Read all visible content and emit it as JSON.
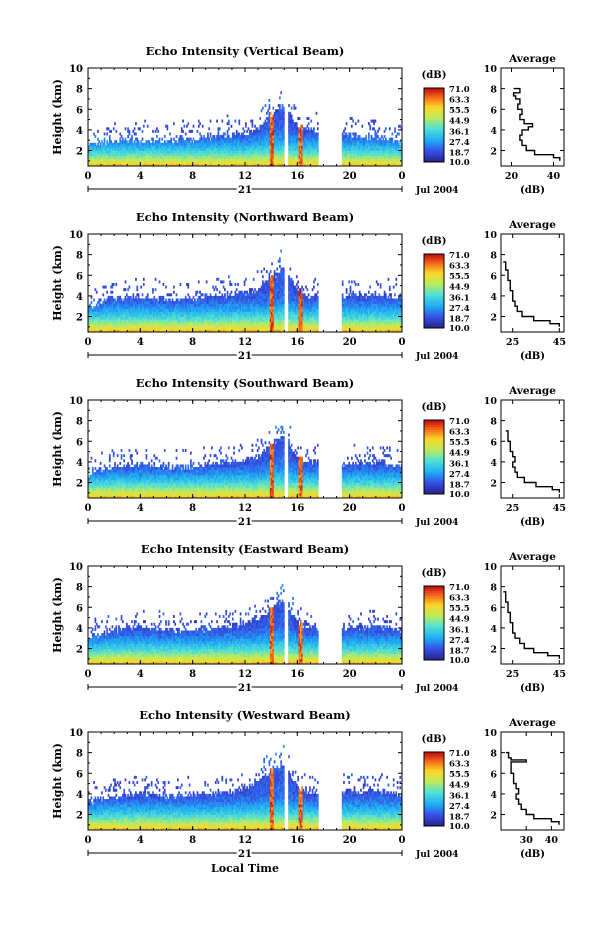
{
  "chart_data": [
    {
      "type": "heatmap",
      "title": "Echo Intensity (Vertical Beam)",
      "xlabel": "",
      "ylabel": "Height (km)",
      "xlim": [
        0,
        24
      ],
      "ylim": [
        0.5,
        10
      ],
      "xticks": [
        "0",
        "4",
        "8",
        "12",
        "16",
        "20",
        "0"
      ],
      "yticks": [
        "2",
        "4",
        "6",
        "8",
        "10"
      ],
      "date_label": "21",
      "month_label": "Jul 2004",
      "colorbar": {
        "unit": "(dB)",
        "levels": [
          "71.0",
          "63.3",
          "55.5",
          "44.9",
          "36.1",
          "27.4",
          "18.7",
          "10.0"
        ]
      },
      "echo_top_km": [
        [
          0,
          2.6
        ],
        [
          2,
          3.0
        ],
        [
          4,
          3.0
        ],
        [
          6,
          3.0
        ],
        [
          8,
          3.1
        ],
        [
          10,
          3.5
        ],
        [
          12,
          3.6
        ],
        [
          13,
          4.2
        ],
        [
          14,
          5.5
        ],
        [
          15,
          6.5
        ],
        [
          16,
          4.3
        ],
        [
          17,
          4.0
        ],
        [
          17.6,
          4.0
        ],
        [
          19.5,
          3.6
        ],
        [
          22,
          3.3
        ],
        [
          24,
          2.8
        ]
      ],
      "data_gap_local_time": [
        17.6,
        19.4
      ],
      "average": {
        "title": "Average",
        "xlabel": "(dB)",
        "xticks": [
          "20",
          "40"
        ],
        "xlim": [
          15,
          45
        ],
        "ylim": [
          0.5,
          10
        ],
        "yticks": [
          "2",
          "4",
          "6",
          "8",
          "10"
        ],
        "height_km": [
          1.0,
          1.3,
          1.6,
          2.0,
          2.5,
          3.0,
          3.5,
          4.0,
          4.3,
          4.6,
          5.0,
          5.5,
          6.0,
          6.5,
          7.0,
          7.3,
          7.6,
          8.0
        ],
        "db": [
          43,
          40,
          31,
          27,
          25,
          24,
          25,
          28,
          30,
          26,
          24,
          25,
          23,
          24,
          22,
          21,
          24,
          21
        ]
      }
    },
    {
      "type": "heatmap",
      "title": "Echo Intensity (Northward Beam)",
      "xlabel": "",
      "ylabel": "Height (km)",
      "xlim": [
        0,
        24
      ],
      "ylim": [
        0.5,
        10
      ],
      "xticks": [
        "0",
        "4",
        "8",
        "12",
        "16",
        "20",
        "0"
      ],
      "yticks": [
        "2",
        "4",
        "6",
        "8",
        "10"
      ],
      "date_label": "21",
      "month_label": "Jul 2004",
      "colorbar": {
        "unit": "(dB)",
        "levels": [
          "71.0",
          "63.3",
          "55.5",
          "44.9",
          "36.1",
          "27.4",
          "18.7",
          "10.0"
        ]
      },
      "echo_top_km": [
        [
          0,
          3.0
        ],
        [
          2,
          3.8
        ],
        [
          4,
          4.0
        ],
        [
          6,
          3.6
        ],
        [
          8,
          3.8
        ],
        [
          10,
          4.0
        ],
        [
          12,
          4.3
        ],
        [
          13,
          4.6
        ],
        [
          14,
          5.8
        ],
        [
          15,
          6.8
        ],
        [
          16,
          4.6
        ],
        [
          17,
          4.0
        ],
        [
          17.6,
          4.0
        ],
        [
          19.5,
          4.0
        ],
        [
          22,
          4.2
        ],
        [
          24,
          3.9
        ]
      ],
      "data_gap_local_time": [
        17.6,
        19.4
      ],
      "average": {
        "title": "Average",
        "xlabel": "(dB)",
        "xticks": [
          "25",
          "45"
        ],
        "xlim": [
          20,
          47
        ],
        "ylim": [
          0.5,
          10
        ],
        "yticks": [
          "2",
          "4",
          "6",
          "8",
          "10"
        ],
        "height_km": [
          1.0,
          1.3,
          1.6,
          2.0,
          2.5,
          3.0,
          3.5,
          4.0,
          4.5,
          5.0,
          5.5,
          6.0,
          6.5,
          7.0,
          7.3
        ],
        "db": [
          45,
          41,
          34,
          29,
          27,
          26,
          25,
          25,
          24,
          24,
          23,
          23,
          22,
          22,
          21
        ]
      }
    },
    {
      "type": "heatmap",
      "title": "Echo Intensity (Southward Beam)",
      "xlabel": "",
      "ylabel": "Height (km)",
      "xlim": [
        0,
        24
      ],
      "ylim": [
        0.5,
        10
      ],
      "xticks": [
        "0",
        "4",
        "8",
        "12",
        "16",
        "20",
        "0"
      ],
      "yticks": [
        "2",
        "4",
        "6",
        "8",
        "10"
      ],
      "date_label": "21",
      "month_label": "Jul 2004",
      "colorbar": {
        "unit": "(dB)",
        "levels": [
          "71.0",
          "63.3",
          "55.5",
          "44.9",
          "36.1",
          "27.4",
          "18.7",
          "10.0"
        ]
      },
      "echo_top_km": [
        [
          0,
          2.8
        ],
        [
          2,
          3.6
        ],
        [
          4,
          3.8
        ],
        [
          6,
          3.5
        ],
        [
          8,
          3.6
        ],
        [
          10,
          3.9
        ],
        [
          12,
          4.2
        ],
        [
          13,
          4.5
        ],
        [
          14,
          5.6
        ],
        [
          15,
          6.8
        ],
        [
          16,
          4.5
        ],
        [
          17,
          4.0
        ],
        [
          17.6,
          4.0
        ],
        [
          19.5,
          3.8
        ],
        [
          22,
          4.0
        ],
        [
          24,
          3.6
        ]
      ],
      "data_gap_local_time": [
        17.6,
        19.4
      ],
      "average": {
        "title": "Average",
        "xlabel": "(dB)",
        "xticks": [
          "25",
          "45"
        ],
        "xlim": [
          20,
          47
        ],
        "ylim": [
          0.5,
          10
        ],
        "yticks": [
          "2",
          "4",
          "6",
          "8",
          "10"
        ],
        "height_km": [
          1.0,
          1.3,
          1.6,
          2.0,
          2.5,
          3.0,
          3.5,
          4.0,
          4.5,
          5.0,
          5.5,
          6.0,
          6.5,
          7.0
        ],
        "db": [
          45,
          42,
          35,
          30,
          27,
          26,
          25,
          26,
          25,
          24,
          24,
          23,
          23,
          22
        ]
      }
    },
    {
      "type": "heatmap",
      "title": "Echo Intensity (Eastward Beam)",
      "xlabel": "",
      "ylabel": "Height (km)",
      "xlim": [
        0,
        24
      ],
      "ylim": [
        0.5,
        10
      ],
      "xticks": [
        "0",
        "4",
        "8",
        "12",
        "16",
        "20",
        "0"
      ],
      "yticks": [
        "2",
        "4",
        "6",
        "8",
        "10"
      ],
      "date_label": "21",
      "month_label": "Jul 2004",
      "colorbar": {
        "unit": "(dB)",
        "levels": [
          "71.0",
          "63.3",
          "55.5",
          "44.9",
          "36.1",
          "27.4",
          "18.7",
          "10.0"
        ]
      },
      "echo_top_km": [
        [
          0,
          3.0
        ],
        [
          2,
          3.8
        ],
        [
          4,
          4.2
        ],
        [
          6,
          3.8
        ],
        [
          8,
          3.8
        ],
        [
          10,
          4.0
        ],
        [
          12,
          4.5
        ],
        [
          13,
          5.0
        ],
        [
          14,
          6.0
        ],
        [
          15,
          6.8
        ],
        [
          16,
          4.5
        ],
        [
          17,
          4.1
        ],
        [
          17.6,
          4.0
        ],
        [
          19.5,
          4.0
        ],
        [
          22,
          4.2
        ],
        [
          24,
          3.8
        ]
      ],
      "data_gap_local_time": [
        17.6,
        19.4
      ],
      "average": {
        "title": "Average",
        "xlabel": "(dB)",
        "xticks": [
          "25",
          "45"
        ],
        "xlim": [
          20,
          47
        ],
        "ylim": [
          0.5,
          10
        ],
        "yticks": [
          "2",
          "4",
          "6",
          "8",
          "10"
        ],
        "height_km": [
          1.0,
          1.3,
          1.6,
          2.0,
          2.5,
          3.0,
          3.5,
          4.0,
          4.5,
          5.0,
          5.5,
          6.0,
          6.5,
          7.0,
          7.5
        ],
        "db": [
          45,
          40,
          34,
          30,
          28,
          26,
          25,
          25,
          24,
          24,
          23,
          23,
          22,
          22,
          21
        ]
      }
    },
    {
      "type": "heatmap",
      "title": "Echo Intensity (Westward Beam)",
      "xlabel": "Local Time",
      "ylabel": "Height (km)",
      "xlim": [
        0,
        24
      ],
      "ylim": [
        0.5,
        10
      ],
      "xticks": [
        "0",
        "4",
        "8",
        "12",
        "16",
        "20",
        "0"
      ],
      "yticks": [
        "2",
        "4",
        "6",
        "8",
        "10"
      ],
      "date_label": "21",
      "month_label": "Jul 2004",
      "colorbar": {
        "unit": "(dB)",
        "levels": [
          "71.0",
          "63.3",
          "55.5",
          "44.9",
          "36.1",
          "27.4",
          "18.7",
          "10.0"
        ]
      },
      "echo_top_km": [
        [
          0,
          3.2
        ],
        [
          2,
          3.8
        ],
        [
          4,
          4.0
        ],
        [
          6,
          3.8
        ],
        [
          8,
          3.9
        ],
        [
          10,
          4.0
        ],
        [
          12,
          4.6
        ],
        [
          13,
          5.2
        ],
        [
          14,
          6.2
        ],
        [
          15,
          7.0
        ],
        [
          16,
          4.6
        ],
        [
          17,
          4.2
        ],
        [
          17.6,
          4.0
        ],
        [
          19.5,
          4.3
        ],
        [
          22,
          4.3
        ],
        [
          24,
          3.9
        ]
      ],
      "data_gap_local_time": [
        17.6,
        19.4
      ],
      "average": {
        "title": "Average",
        "xlabel": "(dB)",
        "xticks": [
          "30",
          "40"
        ],
        "xlim": [
          20,
          45
        ],
        "ylim": [
          0.5,
          10
        ],
        "yticks": [
          "2",
          "4",
          "6",
          "8",
          "10"
        ],
        "height_km": [
          1.0,
          1.3,
          1.6,
          2.0,
          2.5,
          3.0,
          3.5,
          4.0,
          4.5,
          5.0,
          5.5,
          6.0,
          6.5,
          7.0,
          7.1,
          7.3,
          7.5,
          8.0
        ],
        "db": [
          43,
          40,
          33,
          30,
          28,
          27,
          26,
          27,
          26,
          25,
          25,
          24,
          24,
          24,
          30,
          24,
          23,
          22
        ]
      }
    }
  ]
}
